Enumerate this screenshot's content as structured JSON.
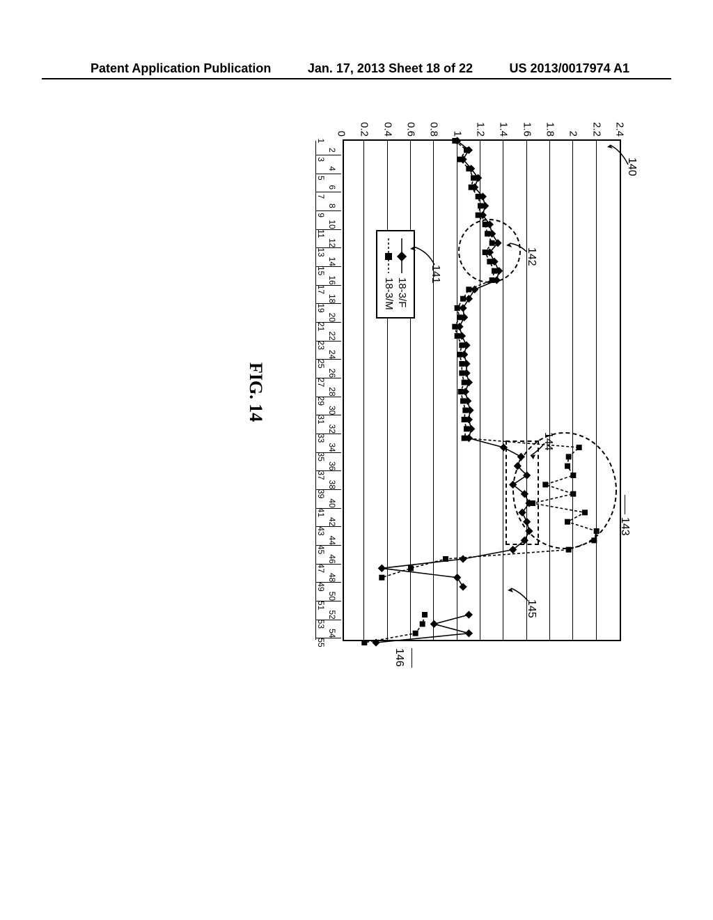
{
  "header": {
    "left": "Patent Application Publication",
    "center": "Jan. 17, 2013  Sheet 18 of 22",
    "right": "US 2013/0017974 A1"
  },
  "figure_caption": "FIG. 14",
  "chart": {
    "type": "line",
    "ylim": [
      0,
      2.4
    ],
    "ytick_step": 0.2,
    "yticks": [
      "0",
      "0.2",
      "0.4",
      "0.6",
      "0.8",
      "1",
      "1.2",
      "1.4",
      "1.6",
      "1.8",
      "2",
      "2.2",
      "2.4"
    ],
    "xlim": [
      1,
      55
    ],
    "x_values": [
      1,
      2,
      3,
      4,
      5,
      6,
      7,
      8,
      9,
      10,
      11,
      12,
      13,
      14,
      15,
      16,
      17,
      18,
      19,
      20,
      21,
      22,
      23,
      24,
      25,
      26,
      27,
      28,
      29,
      30,
      31,
      32,
      33,
      34,
      35,
      36,
      37,
      38,
      39,
      40,
      41,
      42,
      43,
      44,
      45,
      46,
      47,
      48,
      49,
      50,
      51,
      52,
      53,
      54,
      55
    ],
    "background_color": "#ffffff",
    "grid_color": "#000000",
    "series": [
      {
        "name": "18-3/F",
        "label": "18-3/F",
        "marker": "diamond",
        "line_style": "solid",
        "color": "#000000",
        "values": [
          1.0,
          1.1,
          1.05,
          1.12,
          1.18,
          1.15,
          1.22,
          1.24,
          1.22,
          1.28,
          1.3,
          1.35,
          1.28,
          1.32,
          1.36,
          1.34,
          1.15,
          1.1,
          1.05,
          1.06,
          1.02,
          1.04,
          1.08,
          1.06,
          1.08,
          1.08,
          1.1,
          1.07,
          1.09,
          1.11,
          1.1,
          1.12,
          1.1,
          1.4,
          1.55,
          1.52,
          1.6,
          1.48,
          1.58,
          1.62,
          1.56,
          1.6,
          1.62,
          1.58,
          1.48,
          1.05,
          0.35,
          1.0,
          1.05,
          null,
          null,
          1.1,
          0.8,
          1.1,
          0.3
        ]
      },
      {
        "name": "18-3/M",
        "label": "18-3/M",
        "marker": "square",
        "line_style": "dashed",
        "color": "#000000",
        "values": [
          0.98,
          1.08,
          1.02,
          1.1,
          1.14,
          1.12,
          1.18,
          1.2,
          1.18,
          1.24,
          1.26,
          1.3,
          1.24,
          1.28,
          1.32,
          1.3,
          1.1,
          1.05,
          1.0,
          1.02,
          0.98,
          1.0,
          1.04,
          1.02,
          1.04,
          1.04,
          1.06,
          1.03,
          1.05,
          1.07,
          1.06,
          1.08,
          1.06,
          2.05,
          1.96,
          1.95,
          2.0,
          1.76,
          2.0,
          1.65,
          2.1,
          1.95,
          2.2,
          2.18,
          1.96,
          0.9,
          0.6,
          0.35,
          null,
          null,
          null,
          0.72,
          0.7,
          0.64,
          0.2
        ]
      }
    ]
  },
  "legend": {
    "items": [
      "18-3/F",
      "18-3/M"
    ]
  },
  "callouts": {
    "c140": "140",
    "c141": "141",
    "c142": "142",
    "c143": "143",
    "c144": "144",
    "c145": "145",
    "c146": "146"
  }
}
